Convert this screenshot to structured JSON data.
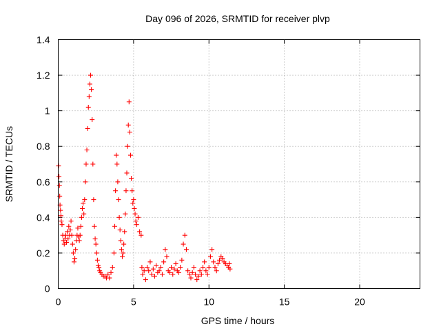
{
  "chart_data": {
    "type": "scatter",
    "title": "Day 096 of 2026, SRMTID for receiver plvp",
    "xlabel": "GPS time / hours",
    "ylabel": "SRMTID / TECUs",
    "xlim": [
      0,
      24
    ],
    "ylim": [
      0,
      1.4
    ],
    "xticks": [
      0,
      5,
      10,
      15,
      20
    ],
    "xtick_labels": [
      "0",
      "5",
      "10",
      "15",
      "20"
    ],
    "yticks": [
      0,
      0.2,
      0.4,
      0.6,
      0.8,
      1.0,
      1.2,
      1.4
    ],
    "ytick_labels": [
      "0",
      "0.2",
      "0.4",
      "0.6",
      "0.8",
      "1",
      "1.2",
      "1.4"
    ],
    "grid": true,
    "marker": "+",
    "color": "#ff0000",
    "series": [
      {
        "name": "plvp",
        "points": [
          [
            0.02,
            0.69
          ],
          [
            0.05,
            0.63
          ],
          [
            0.08,
            0.58
          ],
          [
            0.1,
            0.52
          ],
          [
            0.12,
            0.47
          ],
          [
            0.15,
            0.44
          ],
          [
            0.18,
            0.41
          ],
          [
            0.2,
            0.38
          ],
          [
            0.25,
            0.36
          ],
          [
            0.3,
            0.3
          ],
          [
            0.35,
            0.27
          ],
          [
            0.4,
            0.25
          ],
          [
            0.45,
            0.28
          ],
          [
            0.5,
            0.3
          ],
          [
            0.55,
            0.26
          ],
          [
            0.6,
            0.32
          ],
          [
            0.65,
            0.28
          ],
          [
            0.7,
            0.35
          ],
          [
            0.75,
            0.3
          ],
          [
            0.8,
            0.33
          ],
          [
            0.85,
            0.38
          ],
          [
            0.9,
            0.3
          ],
          [
            0.95,
            0.25
          ],
          [
            1.0,
            0.2
          ],
          [
            1.05,
            0.15
          ],
          [
            1.1,
            0.17
          ],
          [
            1.15,
            0.22
          ],
          [
            1.2,
            0.27
          ],
          [
            1.25,
            0.3
          ],
          [
            1.3,
            0.34
          ],
          [
            1.35,
            0.29
          ],
          [
            1.4,
            0.27
          ],
          [
            1.45,
            0.3
          ],
          [
            1.5,
            0.35
          ],
          [
            1.55,
            0.4
          ],
          [
            1.6,
            0.45
          ],
          [
            1.65,
            0.48
          ],
          [
            1.7,
            0.42
          ],
          [
            1.75,
            0.5
          ],
          [
            1.8,
            0.6
          ],
          [
            1.85,
            0.7
          ],
          [
            1.9,
            0.78
          ],
          [
            1.95,
            0.9
          ],
          [
            2.0,
            1.02
          ],
          [
            2.05,
            1.08
          ],
          [
            2.1,
            1.15
          ],
          [
            2.15,
            1.2
          ],
          [
            2.2,
            1.12
          ],
          [
            2.25,
            0.95
          ],
          [
            2.3,
            0.7
          ],
          [
            2.35,
            0.5
          ],
          [
            2.4,
            0.35
          ],
          [
            2.45,
            0.28
          ],
          [
            2.5,
            0.25
          ],
          [
            2.55,
            0.2
          ],
          [
            2.6,
            0.16
          ],
          [
            2.65,
            0.13
          ],
          [
            2.7,
            0.12
          ],
          [
            2.75,
            0.1
          ],
          [
            2.8,
            0.09
          ],
          [
            2.9,
            0.08
          ],
          [
            3.0,
            0.07
          ],
          [
            3.1,
            0.07
          ],
          [
            3.2,
            0.06
          ],
          [
            3.3,
            0.08
          ],
          [
            3.4,
            0.06
          ],
          [
            3.5,
            0.09
          ],
          [
            3.6,
            0.12
          ],
          [
            3.7,
            0.2
          ],
          [
            3.75,
            0.35
          ],
          [
            3.8,
            0.55
          ],
          [
            3.85,
            0.75
          ],
          [
            3.9,
            0.7
          ],
          [
            3.95,
            0.6
          ],
          [
            4.0,
            0.5
          ],
          [
            4.05,
            0.4
          ],
          [
            4.1,
            0.33
          ],
          [
            4.15,
            0.27
          ],
          [
            4.2,
            0.22
          ],
          [
            4.25,
            0.18
          ],
          [
            4.3,
            0.2
          ],
          [
            4.35,
            0.25
          ],
          [
            4.4,
            0.32
          ],
          [
            4.45,
            0.42
          ],
          [
            4.5,
            0.55
          ],
          [
            4.55,
            0.65
          ],
          [
            4.6,
            0.8
          ],
          [
            4.65,
            0.92
          ],
          [
            4.7,
            1.05
          ],
          [
            4.75,
            0.88
          ],
          [
            4.8,
            0.75
          ],
          [
            4.85,
            0.62
          ],
          [
            4.9,
            0.55
          ],
          [
            4.95,
            0.48
          ],
          [
            5.0,
            0.5
          ],
          [
            5.05,
            0.45
          ],
          [
            5.1,
            0.42
          ],
          [
            5.15,
            0.38
          ],
          [
            5.2,
            0.36
          ],
          [
            5.3,
            0.4
          ],
          [
            5.4,
            0.32
          ],
          [
            5.5,
            0.3
          ],
          [
            5.55,
            0.12
          ],
          [
            5.6,
            0.08
          ],
          [
            5.7,
            0.1
          ],
          [
            5.8,
            0.05
          ],
          [
            5.9,
            0.12
          ],
          [
            6.0,
            0.1
          ],
          [
            6.1,
            0.15
          ],
          [
            6.2,
            0.08
          ],
          [
            6.3,
            0.11
          ],
          [
            6.4,
            0.07
          ],
          [
            6.5,
            0.13
          ],
          [
            6.6,
            0.09
          ],
          [
            6.7,
            0.1
          ],
          [
            6.8,
            0.12
          ],
          [
            6.9,
            0.08
          ],
          [
            7.0,
            0.15
          ],
          [
            7.1,
            0.22
          ],
          [
            7.2,
            0.18
          ],
          [
            7.3,
            0.1
          ],
          [
            7.4,
            0.09
          ],
          [
            7.5,
            0.12
          ],
          [
            7.6,
            0.08
          ],
          [
            7.7,
            0.11
          ],
          [
            7.8,
            0.14
          ],
          [
            7.9,
            0.1
          ],
          [
            8.0,
            0.09
          ],
          [
            8.1,
            0.12
          ],
          [
            8.2,
            0.16
          ],
          [
            8.3,
            0.25
          ],
          [
            8.4,
            0.3
          ],
          [
            8.5,
            0.22
          ],
          [
            8.6,
            0.1
          ],
          [
            8.7,
            0.08
          ],
          [
            8.8,
            0.06
          ],
          [
            8.9,
            0.09
          ],
          [
            9.0,
            0.12
          ],
          [
            9.1,
            0.08
          ],
          [
            9.2,
            0.05
          ],
          [
            9.3,
            0.07
          ],
          [
            9.4,
            0.1
          ],
          [
            9.5,
            0.08
          ],
          [
            9.6,
            0.12
          ],
          [
            9.7,
            0.15
          ],
          [
            9.8,
            0.1
          ],
          [
            9.9,
            0.08
          ],
          [
            10.0,
            0.12
          ],
          [
            10.1,
            0.18
          ],
          [
            10.2,
            0.22
          ],
          [
            10.3,
            0.15
          ],
          [
            10.4,
            0.12
          ],
          [
            10.5,
            0.1
          ],
          [
            10.6,
            0.14
          ],
          [
            10.7,
            0.16
          ],
          [
            10.8,
            0.18
          ],
          [
            10.9,
            0.17
          ],
          [
            11.0,
            0.15
          ],
          [
            11.1,
            0.14
          ],
          [
            11.2,
            0.13
          ],
          [
            11.3,
            0.12
          ],
          [
            11.35,
            0.14
          ],
          [
            11.4,
            0.11
          ]
        ]
      }
    ]
  }
}
